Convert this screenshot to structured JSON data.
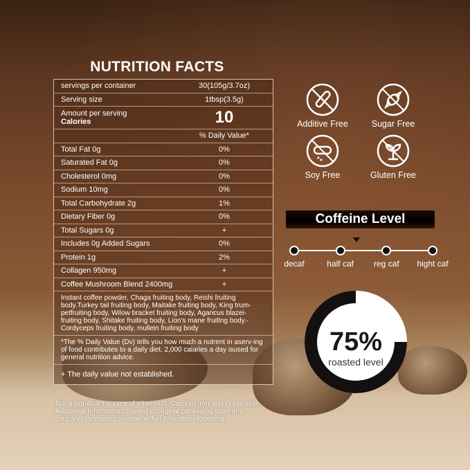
{
  "title": "NUTRITION FACTS",
  "table": {
    "servings": {
      "label": "servings per container",
      "value": "30(105g/3.7oz)"
    },
    "serving_size": {
      "label": "Serving size",
      "value": "1tbsp(3.5g)"
    },
    "amount_label": "Amount per serving",
    "calories_label": "Calories",
    "calories_value": "10",
    "dv_header": "% Daily Value*",
    "rows": [
      {
        "label": "Total Fat 0g",
        "value": "0%"
      },
      {
        "label": "Saturated Fat 0g",
        "value": "0%"
      },
      {
        "label": "Cholesterol 0mg",
        "value": "0%"
      },
      {
        "label": "Sodium 10mg",
        "value": "0%"
      },
      {
        "label": "Total Carbohydrate 2g",
        "value": "1%"
      },
      {
        "label": "Dietary Fiber 0g",
        "value": "0%"
      },
      {
        "label": "Total Sugars 0g",
        "value": "+"
      },
      {
        "label": "Includes 0g Added Sugars",
        "value": "0%"
      },
      {
        "label": "Protein 1g",
        "value": "2%"
      },
      {
        "label": "Collagen 950mg",
        "value": "+"
      },
      {
        "label": "Coffee  Mushroom Blend 2400mg",
        "value": "+"
      }
    ],
    "ingredients": "Instant coffee powder, Chaga fruiting body, Reishi fruiting body.Turkey tail fruiting body, Maitake fruiting body, King trum-petfruiting body, Wilow bracket fruiting body, Agaricus blazei-fruiting body, Shitake fruiting body, Lion's mane fruiting body.-Cordyceps fruiting body, mullein fruiting body",
    "dv_note": "*The % Daily Value (Dv) tells you how much a nutrent in aserv-ing of food contributes to a daily diet. 2,000 calaries a day isused for general nutrition advice.",
    "plus_note": "+ The daily value not established."
  },
  "footnote": "Not a significant source of Vitamin D, Calcium,Iron and Potas-sium Additional Information: Sealed in original packaging store in a cool,dry place and consume within 6 months ofopening.",
  "badges": [
    {
      "label": "Additive Free",
      "icon": "test-tube-crossed-icon"
    },
    {
      "label": "Sugar Free",
      "icon": "candy-crossed-icon"
    },
    {
      "label": "Soy Free",
      "icon": "pill-crossed-icon"
    },
    {
      "label": "Gluten Free",
      "icon": "sprout-crossed-icon"
    }
  ],
  "caffeine": {
    "title": "Coffeine Level",
    "levels": [
      "decaf",
      "half caf",
      "reg caf",
      "hight caf"
    ],
    "indicator_between": [
      "half caf",
      "reg caf"
    ]
  },
  "roast": {
    "percent_label": "75%",
    "percent": 75,
    "label": "roasted level"
  }
}
